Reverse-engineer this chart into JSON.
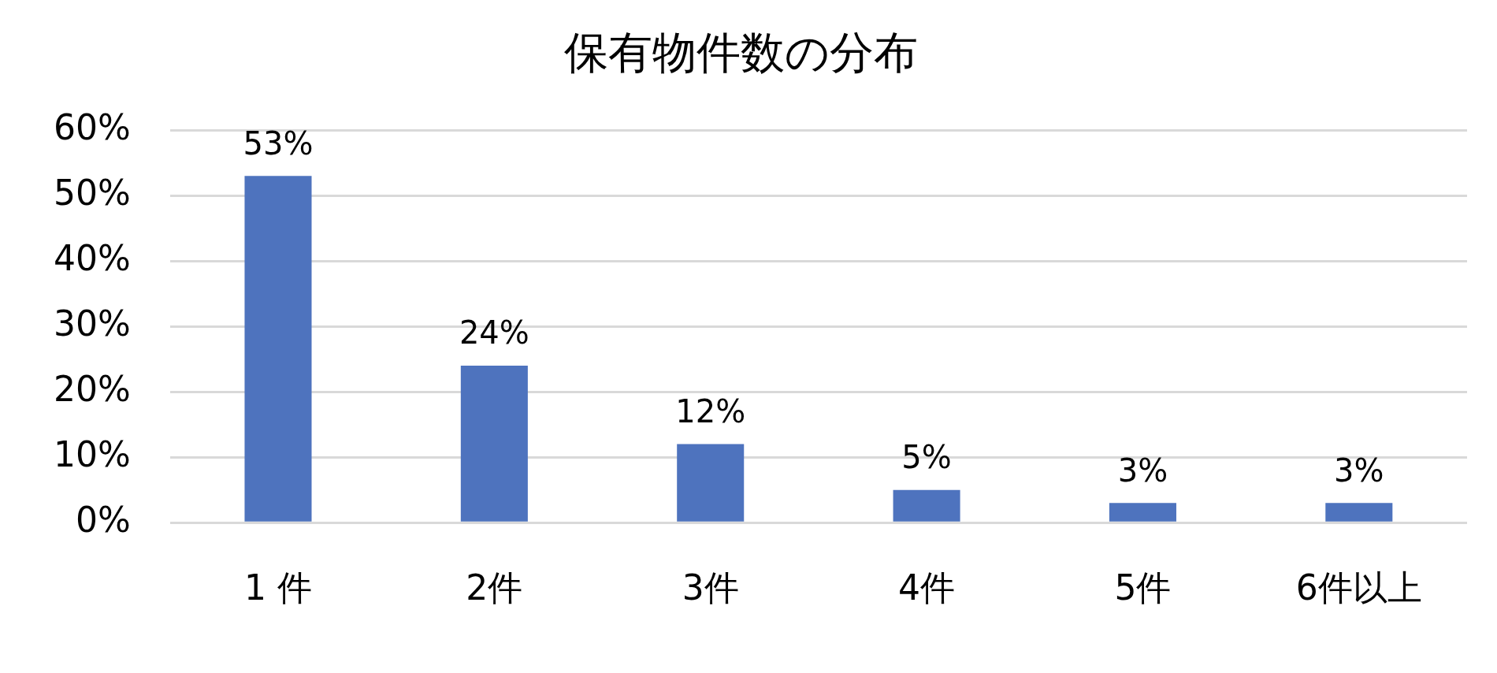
{
  "chart_data": {
    "type": "bar",
    "title": "保有物件数の分布",
    "categories": [
      "1 件",
      "2件",
      "3件",
      "4件",
      "5件",
      "6件以上"
    ],
    "values": [
      53,
      24,
      12,
      5,
      3,
      3
    ],
    "value_labels": [
      "53%",
      "24%",
      "12%",
      "5%",
      "3%",
      "3%"
    ],
    "color": "#4e73be",
    "ylim": [
      0,
      60
    ],
    "yticks": [
      {
        "value": 0,
        "label": "0%"
      },
      {
        "value": 10,
        "label": "10%"
      },
      {
        "value": 20,
        "label": "20%"
      },
      {
        "value": 30,
        "label": "30%"
      },
      {
        "value": 40,
        "label": "40%"
      },
      {
        "value": 50,
        "label": "50%"
      },
      {
        "value": 60,
        "label": "60%"
      }
    ],
    "grid": "y",
    "legend": false
  }
}
